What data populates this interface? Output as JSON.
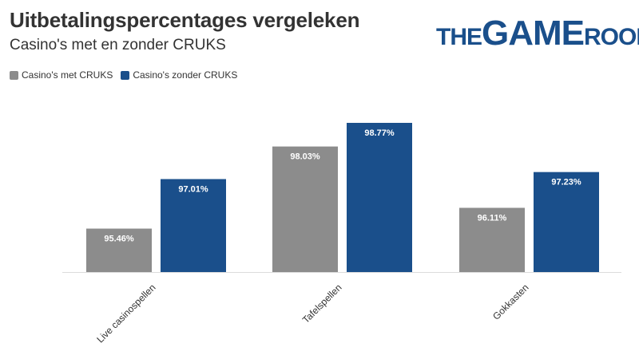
{
  "logo": {
    "parts": [
      "THE",
      "GAME",
      "ROOM"
    ]
  },
  "chart_data": {
    "type": "bar",
    "title": "Uitbetalingspercentages vergeleken",
    "subtitle": "Casino's met en zonder CRUKS",
    "categories": [
      "Live casinospellen",
      "Tafelspellen",
      "Gokkasten"
    ],
    "series": [
      {
        "name": "Casino's met CRUKS",
        "color": "#8c8c8c",
        "values": [
          95.46,
          98.03,
          96.11
        ],
        "labels": [
          "95.46%",
          "98.03%",
          "96.11%"
        ]
      },
      {
        "name": "Casino's zonder CRUKS",
        "color": "#1a4f8b",
        "values": [
          97.01,
          98.77,
          97.23
        ],
        "labels": [
          "97.01%",
          "98.77%",
          "97.23%"
        ]
      }
    ],
    "ylim": [
      94.1,
      98.77
    ],
    "grid": false,
    "legend": "top-left",
    "xlabel": "",
    "ylabel": ""
  }
}
